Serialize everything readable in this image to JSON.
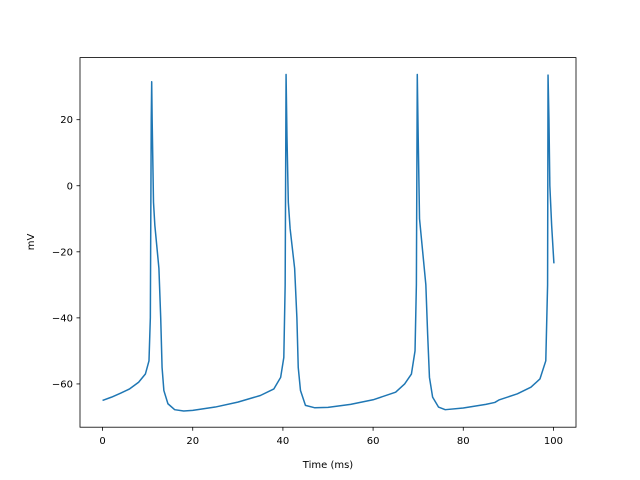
{
  "chart_data": {
    "type": "line",
    "xlabel": "Time (ms)",
    "ylabel": "mV",
    "color": "#1f77b4",
    "x": [
      0,
      2,
      4,
      6,
      8,
      9.5,
      10.3,
      10.6,
      10.8,
      10.9,
      11.0,
      11.3,
      11.6,
      12.5,
      12.9,
      13.2,
      13.6,
      14.5,
      16,
      18,
      20,
      25,
      30,
      35,
      38,
      39.5,
      40.2,
      40.5,
      40.7,
      40.9,
      41.2,
      41.6,
      42.6,
      43.1,
      43.4,
      43.9,
      45,
      47,
      50,
      55,
      60,
      65,
      67,
      68.5,
      69.3,
      69.6,
      69.8,
      70.0,
      70.3,
      71.0,
      71.7,
      72.1,
      72.5,
      73.2,
      74.5,
      76,
      80,
      85,
      87,
      88,
      92,
      95,
      97,
      98.3,
      98.7,
      98.8,
      99.0,
      99.2,
      99.6,
      100.1
    ],
    "values": [
      -65,
      -64,
      -62.8,
      -61.5,
      -59.5,
      -57,
      -53,
      -40,
      20,
      31.5,
      20,
      -5,
      -12,
      -25,
      -40,
      -55,
      -62,
      -66,
      -67.8,
      -68.2,
      -68,
      -67,
      -65.5,
      -63.5,
      -61.5,
      -58,
      -52,
      -30,
      33.7,
      15,
      -5,
      -13,
      -25,
      -40,
      -55,
      -62,
      -66.5,
      -67.2,
      -67.1,
      -66.2,
      -64.8,
      -62.5,
      -60,
      -57,
      -50,
      -30,
      33.7,
      15,
      -10,
      -20,
      -30,
      -45,
      -58,
      -64,
      -67,
      -67.8,
      -67.3,
      -66.2,
      -65.6,
      -64.8,
      -63,
      -61,
      -58.5,
      -53,
      -30,
      33.5,
      20,
      0,
      -12,
      -23.5
    ],
    "xlim": [
      -5,
      105
    ],
    "ylim": [
      -73.1,
      38.8
    ],
    "xticks": [
      0,
      20,
      40,
      60,
      80,
      100
    ],
    "yticks": [
      {
        "value": -60,
        "label": "−60"
      },
      {
        "value": -40,
        "label": "−40"
      },
      {
        "value": -20,
        "label": "−20"
      },
      0,
      20
    ],
    "grid": false
  }
}
